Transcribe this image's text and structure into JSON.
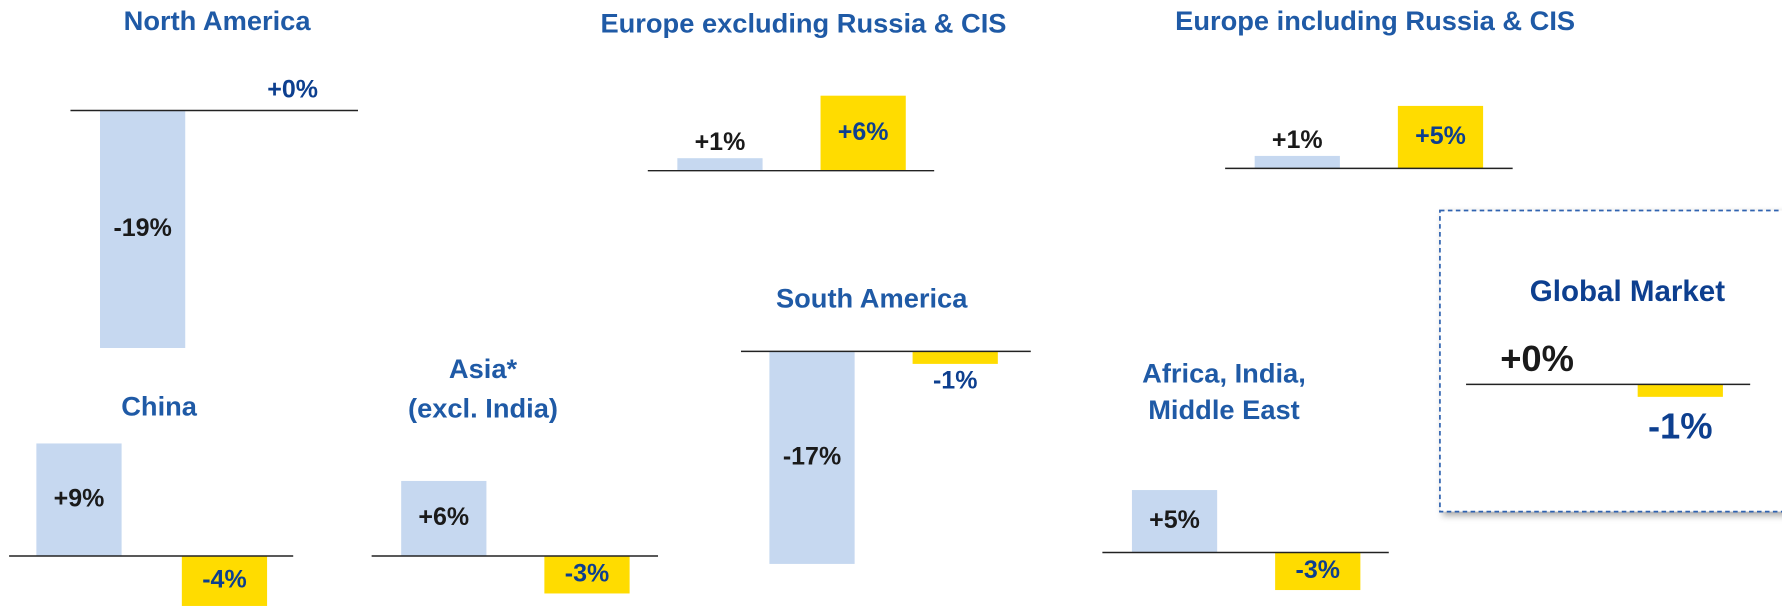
{
  "chart_data": [
    {
      "type": "bar",
      "title": [
        "North America"
      ],
      "values": [
        -19,
        0
      ],
      "value_labels": [
        "-19%",
        "+0%"
      ],
      "colors": [
        "#c6d8f0",
        "#ffdc00"
      ]
    },
    {
      "type": "bar",
      "title": [
        "Europe excluding Russia & CIS"
      ],
      "values": [
        1,
        6
      ],
      "value_labels": [
        "+1%",
        "+6%"
      ],
      "colors": [
        "#c6d8f0",
        "#ffdc00"
      ]
    },
    {
      "type": "bar",
      "title": [
        "Europe including Russia & CIS"
      ],
      "values": [
        1,
        5
      ],
      "value_labels": [
        "+1%",
        "+5%"
      ],
      "colors": [
        "#c6d8f0",
        "#ffdc00"
      ]
    },
    {
      "type": "bar",
      "title": [
        "China"
      ],
      "values": [
        9,
        -4
      ],
      "value_labels": [
        "+9%",
        "-4%"
      ],
      "colors": [
        "#c6d8f0",
        "#ffdc00"
      ]
    },
    {
      "type": "bar",
      "title": [
        "Asia*",
        "(excl. India)"
      ],
      "values": [
        6,
        -3
      ],
      "value_labels": [
        "+6%",
        "-3%"
      ],
      "colors": [
        "#c6d8f0",
        "#ffdc00"
      ]
    },
    {
      "type": "bar",
      "title": [
        "South America"
      ],
      "values": [
        -17,
        -1
      ],
      "value_labels": [
        "-17%",
        "-1%"
      ],
      "colors": [
        "#c6d8f0",
        "#ffdc00"
      ]
    },
    {
      "type": "bar",
      "title": [
        "Africa, India,",
        "Middle East"
      ],
      "values": [
        5,
        -3
      ],
      "value_labels": [
        "+5%",
        "-3%"
      ],
      "colors": [
        "#c6d8f0",
        "#ffdc00"
      ]
    },
    {
      "type": "bar",
      "title": [
        "Global Market"
      ],
      "values": [
        0,
        -1
      ],
      "value_labels": [
        "+0%",
        "-1%"
      ],
      "colors": [
        "#c6d8f0",
        "#ffdc00"
      ]
    }
  ]
}
